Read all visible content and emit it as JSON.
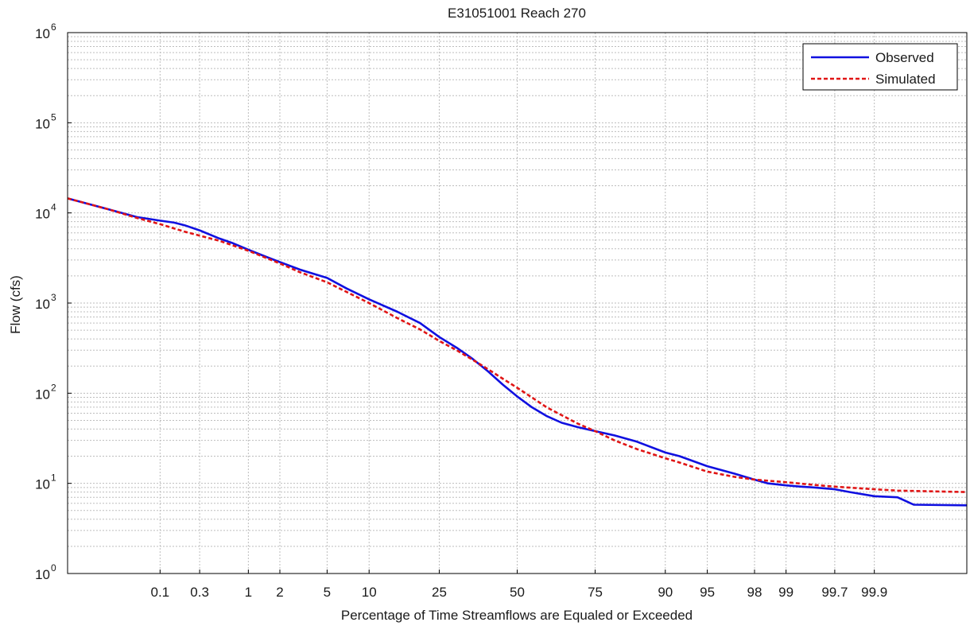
{
  "chart_data": {
    "type": "line",
    "title": "E31051001 Reach 270",
    "xlabel": "Percentage of Time Streamflows are Equaled or Exceeded",
    "ylabel": "Flow (cfs)",
    "x_scale": "normal-probability",
    "y_scale": "log",
    "xlim": [
      0.005,
      99.995
    ],
    "ylim": [
      1,
      1000000
    ],
    "x_ticks": [
      {
        "value": 0.1,
        "label": "0.1"
      },
      {
        "value": 0.3,
        "label": "0.3"
      },
      {
        "value": 1,
        "label": "1"
      },
      {
        "value": 2,
        "label": "2"
      },
      {
        "value": 5,
        "label": "5"
      },
      {
        "value": 10,
        "label": "10"
      },
      {
        "value": 25,
        "label": "25"
      },
      {
        "value": 50,
        "label": "50"
      },
      {
        "value": 75,
        "label": "75"
      },
      {
        "value": 90,
        "label": "90"
      },
      {
        "value": 95,
        "label": "95"
      },
      {
        "value": 98,
        "label": "98"
      },
      {
        "value": 99,
        "label": "99"
      },
      {
        "value": 99.7,
        "label": "99.7"
      },
      {
        "value": 99.9,
        "label": "99.9"
      }
    ],
    "y_ticks": [
      {
        "value": 1,
        "base": "10",
        "exp": "0"
      },
      {
        "value": 10,
        "base": "10",
        "exp": "1"
      },
      {
        "value": 100,
        "base": "10",
        "exp": "2"
      },
      {
        "value": 1000,
        "base": "10",
        "exp": "3"
      },
      {
        "value": 10000,
        "base": "10",
        "exp": "4"
      },
      {
        "value": 100000,
        "base": "10",
        "exp": "5"
      },
      {
        "value": 1000000,
        "base": "10",
        "exp": "6"
      }
    ],
    "grid": true,
    "legend_position": "top-right",
    "series": [
      {
        "name": "Observed",
        "color": "#1010e0",
        "style": "solid",
        "x": [
          0.005,
          0.02,
          0.05,
          0.1,
          0.15,
          0.2,
          0.3,
          0.5,
          0.7,
          1,
          1.5,
          2,
          3,
          5,
          7,
          10,
          15,
          20,
          25,
          30,
          35,
          40,
          45,
          50,
          55,
          60,
          65,
          70,
          75,
          80,
          85,
          90,
          92,
          95,
          97,
          98,
          98.5,
          99,
          99.3,
          99.5,
          99.7,
          99.8,
          99.9,
          99.95,
          99.97,
          99.995
        ],
        "y": [
          14500,
          11000,
          9000,
          8200,
          7800,
          7300,
          6400,
          5200,
          4600,
          3900,
          3250,
          2850,
          2350,
          1900,
          1450,
          1100,
          800,
          600,
          420,
          320,
          240,
          175,
          125,
          92,
          70,
          56,
          47,
          42,
          38,
          34,
          29,
          22,
          20,
          15.5,
          12.8,
          11,
          10,
          9.5,
          9.2,
          9.0,
          8.6,
          8.0,
          7.2,
          7.0,
          5.8,
          5.7
        ]
      },
      {
        "name": "Simulated",
        "color": "#e01515",
        "style": "dashed",
        "x": [
          0.005,
          0.02,
          0.05,
          0.1,
          0.2,
          0.3,
          0.5,
          1,
          2,
          3,
          5,
          10,
          15,
          20,
          25,
          30,
          35,
          40,
          45,
          50,
          55,
          60,
          65,
          70,
          75,
          80,
          85,
          90,
          92,
          95,
          97,
          98,
          99,
          99.5,
          99.7,
          99.9,
          99.95,
          99.995
        ],
        "y": [
          14500,
          11000,
          8800,
          7500,
          6200,
          5600,
          4900,
          3800,
          2750,
          2200,
          1700,
          1000,
          680,
          510,
          380,
          300,
          235,
          185,
          145,
          115,
          90,
          70,
          57,
          46,
          38,
          30,
          24,
          19,
          17,
          13.5,
          11.8,
          11,
          10.3,
          9.6,
          9.2,
          8.6,
          8.3,
          8.0
        ]
      }
    ]
  }
}
